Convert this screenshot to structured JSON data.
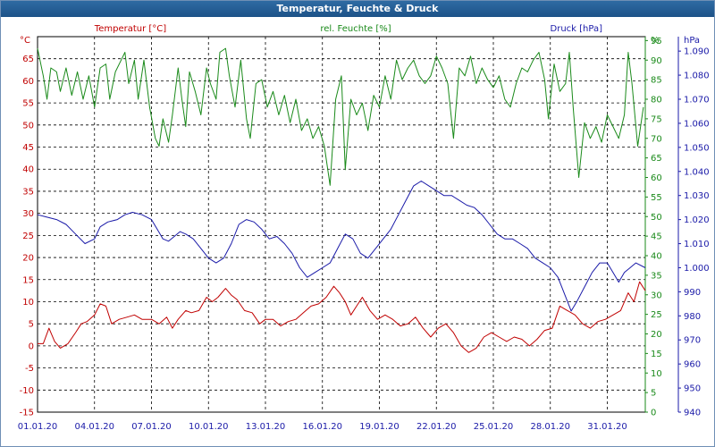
{
  "window": {
    "title": "Temperatur, Feuchte & Druck"
  },
  "chart_data": {
    "type": "line",
    "title": "Temperatur, Feuchte & Druck",
    "grid": true,
    "x_axis": {
      "ticks": [
        "01.01.20",
        "04.01.20",
        "07.01.20",
        "10.01.20",
        "13.01.20",
        "16.01.20",
        "19.01.20",
        "22.01.20",
        "25.01.20",
        "28.01.20",
        "31.01.20"
      ],
      "range": [
        0,
        32
      ],
      "unit": "days"
    },
    "axes": {
      "temperature": {
        "unit_label": "°C",
        "range": [
          -15,
          70
        ],
        "ticks": [
          "-15",
          "-10",
          "-5",
          "0",
          "5",
          "10",
          "15",
          "20",
          "25",
          "30",
          "35",
          "40",
          "45",
          "50",
          "55",
          "60",
          "65"
        ],
        "color": "#c00000"
      },
      "humidity": {
        "unit_label": "%",
        "range": [
          0,
          96
        ],
        "ticks": [
          "0",
          "5",
          "10",
          "15",
          "20",
          "25",
          "30",
          "35",
          "40",
          "45",
          "50",
          "55",
          "60",
          "65",
          "70",
          "75",
          "80",
          "85",
          "90",
          "95"
        ],
        "color": "#1a8a1a"
      },
      "pressure": {
        "unit_label": "hPa",
        "range": [
          940,
          1096
        ],
        "ticks": [
          "940",
          "950",
          "960",
          "970",
          "980",
          "990",
          "1.000",
          "1.010",
          "1.020",
          "1.030",
          "1.040",
          "1.050",
          "1.060",
          "1.070",
          "1.080",
          "1.090"
        ],
        "color": "#1a1aa8"
      }
    },
    "series": [
      {
        "name": "Temperatur [°C]",
        "axis": "temperature",
        "color": "#c00000",
        "points": [
          [
            0.0,
            0.5
          ],
          [
            0.3,
            0.5
          ],
          [
            0.6,
            4
          ],
          [
            0.9,
            1
          ],
          [
            1.2,
            -0.5
          ],
          [
            1.6,
            0.5
          ],
          [
            2.0,
            3
          ],
          [
            2.3,
            5
          ],
          [
            2.6,
            5.5
          ],
          [
            3.0,
            7
          ],
          [
            3.3,
            9.5
          ],
          [
            3.6,
            9
          ],
          [
            3.9,
            5
          ],
          [
            4.3,
            6
          ],
          [
            4.7,
            6.5
          ],
          [
            5.1,
            7
          ],
          [
            5.5,
            6
          ],
          [
            6.0,
            6
          ],
          [
            6.4,
            5
          ],
          [
            6.8,
            6.5
          ],
          [
            7.1,
            4
          ],
          [
            7.4,
            6
          ],
          [
            7.8,
            8
          ],
          [
            8.1,
            7.5
          ],
          [
            8.5,
            8
          ],
          [
            8.9,
            11
          ],
          [
            9.2,
            10
          ],
          [
            9.5,
            11
          ],
          [
            9.9,
            13
          ],
          [
            10.2,
            11.5
          ],
          [
            10.5,
            10.5
          ],
          [
            10.9,
            8
          ],
          [
            11.3,
            7.5
          ],
          [
            11.7,
            5
          ],
          [
            12.0,
            6
          ],
          [
            12.4,
            6
          ],
          [
            12.8,
            4.5
          ],
          [
            13.2,
            5.5
          ],
          [
            13.6,
            6
          ],
          [
            14.0,
            7.5
          ],
          [
            14.4,
            9
          ],
          [
            14.8,
            9.5
          ],
          [
            15.2,
            11
          ],
          [
            15.6,
            13.5
          ],
          [
            15.9,
            12
          ],
          [
            16.2,
            10
          ],
          [
            16.5,
            7
          ],
          [
            16.8,
            9
          ],
          [
            17.1,
            11
          ],
          [
            17.5,
            8
          ],
          [
            17.9,
            6
          ],
          [
            18.3,
            7
          ],
          [
            18.7,
            6
          ],
          [
            19.1,
            4.5
          ],
          [
            19.5,
            5
          ],
          [
            19.9,
            6.5
          ],
          [
            20.3,
            4
          ],
          [
            20.7,
            2
          ],
          [
            21.1,
            4
          ],
          [
            21.5,
            5
          ],
          [
            21.9,
            3
          ],
          [
            22.3,
            0
          ],
          [
            22.7,
            -1.5
          ],
          [
            23.1,
            -0.5
          ],
          [
            23.5,
            2
          ],
          [
            23.9,
            3
          ],
          [
            24.3,
            2
          ],
          [
            24.7,
            1
          ],
          [
            25.1,
            2
          ],
          [
            25.5,
            1.5
          ],
          [
            25.9,
            0
          ],
          [
            26.3,
            1.5
          ],
          [
            26.7,
            3.5
          ],
          [
            27.1,
            4
          ],
          [
            27.5,
            9
          ],
          [
            27.9,
            8
          ],
          [
            28.3,
            7
          ],
          [
            28.7,
            5
          ],
          [
            29.1,
            4
          ],
          [
            29.5,
            5.5
          ],
          [
            29.9,
            6
          ],
          [
            30.3,
            7
          ],
          [
            30.7,
            8
          ],
          [
            31.1,
            12
          ],
          [
            31.4,
            10
          ],
          [
            31.7,
            14.5
          ],
          [
            32.0,
            12.5
          ]
        ]
      },
      {
        "name": "rel. Feuchte [%]",
        "axis": "humidity",
        "color": "#1a8a1a",
        "points": [
          [
            0.0,
            93
          ],
          [
            0.3,
            86
          ],
          [
            0.5,
            80
          ],
          [
            0.7,
            88
          ],
          [
            1.0,
            87
          ],
          [
            1.2,
            82
          ],
          [
            1.5,
            88
          ],
          [
            1.8,
            81
          ],
          [
            2.1,
            87
          ],
          [
            2.4,
            80
          ],
          [
            2.7,
            86
          ],
          [
            3.0,
            78
          ],
          [
            3.3,
            88
          ],
          [
            3.6,
            89
          ],
          [
            3.8,
            80
          ],
          [
            4.1,
            87
          ],
          [
            4.4,
            90
          ],
          [
            4.6,
            92
          ],
          [
            4.8,
            84
          ],
          [
            5.1,
            90
          ],
          [
            5.3,
            80
          ],
          [
            5.6,
            90
          ],
          [
            5.9,
            78
          ],
          [
            6.2,
            70
          ],
          [
            6.4,
            68
          ],
          [
            6.6,
            75
          ],
          [
            6.9,
            69
          ],
          [
            7.1,
            76
          ],
          [
            7.4,
            88
          ],
          [
            7.6,
            80
          ],
          [
            7.8,
            73
          ],
          [
            8.0,
            87
          ],
          [
            8.3,
            82
          ],
          [
            8.6,
            76
          ],
          [
            8.9,
            88
          ],
          [
            9.1,
            84
          ],
          [
            9.4,
            80
          ],
          [
            9.6,
            92
          ],
          [
            9.9,
            93
          ],
          [
            10.1,
            86
          ],
          [
            10.4,
            78
          ],
          [
            10.7,
            90
          ],
          [
            11.0,
            75
          ],
          [
            11.2,
            70
          ],
          [
            11.5,
            84
          ],
          [
            11.8,
            85
          ],
          [
            12.1,
            78
          ],
          [
            12.4,
            82
          ],
          [
            12.7,
            76
          ],
          [
            13.0,
            81
          ],
          [
            13.3,
            74
          ],
          [
            13.6,
            80
          ],
          [
            13.9,
            72
          ],
          [
            14.2,
            75
          ],
          [
            14.5,
            70
          ],
          [
            14.8,
            73
          ],
          [
            15.1,
            68
          ],
          [
            15.4,
            58
          ],
          [
            15.7,
            80
          ],
          [
            16.0,
            86
          ],
          [
            16.2,
            62
          ],
          [
            16.5,
            80
          ],
          [
            16.8,
            76
          ],
          [
            17.1,
            79
          ],
          [
            17.4,
            72
          ],
          [
            17.7,
            81
          ],
          [
            18.0,
            78
          ],
          [
            18.3,
            86
          ],
          [
            18.6,
            80
          ],
          [
            18.9,
            90
          ],
          [
            19.2,
            85
          ],
          [
            19.5,
            88
          ],
          [
            19.8,
            90
          ],
          [
            20.1,
            86
          ],
          [
            20.4,
            84
          ],
          [
            20.7,
            86
          ],
          [
            21.0,
            91
          ],
          [
            21.3,
            88
          ],
          [
            21.6,
            84
          ],
          [
            21.9,
            70
          ],
          [
            22.2,
            88
          ],
          [
            22.5,
            86
          ],
          [
            22.8,
            91
          ],
          [
            23.1,
            84
          ],
          [
            23.4,
            88
          ],
          [
            23.7,
            85
          ],
          [
            24.0,
            83
          ],
          [
            24.3,
            86
          ],
          [
            24.6,
            80
          ],
          [
            24.9,
            78
          ],
          [
            25.2,
            84
          ],
          [
            25.5,
            88
          ],
          [
            25.8,
            87
          ],
          [
            26.1,
            90
          ],
          [
            26.4,
            92
          ],
          [
            26.7,
            85
          ],
          [
            26.9,
            75
          ],
          [
            27.2,
            89
          ],
          [
            27.5,
            82
          ],
          [
            27.8,
            84
          ],
          [
            28.0,
            92
          ],
          [
            28.2,
            78
          ],
          [
            28.5,
            60
          ],
          [
            28.8,
            74
          ],
          [
            29.1,
            70
          ],
          [
            29.4,
            73
          ],
          [
            29.7,
            69
          ],
          [
            30.0,
            76
          ],
          [
            30.3,
            73
          ],
          [
            30.6,
            70
          ],
          [
            30.9,
            76
          ],
          [
            31.1,
            92
          ],
          [
            31.3,
            84
          ],
          [
            31.6,
            68
          ],
          [
            31.9,
            78
          ]
        ]
      },
      {
        "name": "Druck [hPa]",
        "axis": "pressure",
        "color": "#1a1aa8",
        "points": [
          [
            0.0,
            1022
          ],
          [
            0.5,
            1021
          ],
          [
            1.0,
            1020
          ],
          [
            1.5,
            1018
          ],
          [
            2.0,
            1014
          ],
          [
            2.5,
            1010
          ],
          [
            3.0,
            1012
          ],
          [
            3.3,
            1017
          ],
          [
            3.7,
            1019
          ],
          [
            4.2,
            1020
          ],
          [
            4.6,
            1022
          ],
          [
            5.0,
            1023
          ],
          [
            5.5,
            1022
          ],
          [
            6.0,
            1020
          ],
          [
            6.3,
            1016
          ],
          [
            6.6,
            1012
          ],
          [
            6.9,
            1011
          ],
          [
            7.2,
            1013
          ],
          [
            7.5,
            1015
          ],
          [
            7.8,
            1014
          ],
          [
            8.2,
            1012
          ],
          [
            8.6,
            1008
          ],
          [
            9.0,
            1004
          ],
          [
            9.4,
            1002
          ],
          [
            9.8,
            1004
          ],
          [
            10.2,
            1010
          ],
          [
            10.6,
            1018
          ],
          [
            11.0,
            1020
          ],
          [
            11.4,
            1019
          ],
          [
            11.8,
            1016
          ],
          [
            12.2,
            1012
          ],
          [
            12.6,
            1013
          ],
          [
            13.0,
            1010
          ],
          [
            13.4,
            1006
          ],
          [
            13.8,
            1000
          ],
          [
            14.2,
            996
          ],
          [
            14.6,
            998
          ],
          [
            15.0,
            1000
          ],
          [
            15.4,
            1002
          ],
          [
            15.8,
            1008
          ],
          [
            16.2,
            1014
          ],
          [
            16.6,
            1012
          ],
          [
            17.0,
            1006
          ],
          [
            17.4,
            1004
          ],
          [
            17.8,
            1008
          ],
          [
            18.2,
            1012
          ],
          [
            18.6,
            1016
          ],
          [
            19.0,
            1022
          ],
          [
            19.4,
            1028
          ],
          [
            19.8,
            1034
          ],
          [
            20.2,
            1036
          ],
          [
            20.6,
            1034
          ],
          [
            21.0,
            1032
          ],
          [
            21.4,
            1030
          ],
          [
            21.8,
            1030
          ],
          [
            22.2,
            1028
          ],
          [
            22.6,
            1026
          ],
          [
            23.0,
            1025
          ],
          [
            23.4,
            1022
          ],
          [
            23.8,
            1018
          ],
          [
            24.2,
            1014
          ],
          [
            24.6,
            1012
          ],
          [
            25.0,
            1012
          ],
          [
            25.4,
            1010
          ],
          [
            25.8,
            1008
          ],
          [
            26.2,
            1004
          ],
          [
            26.6,
            1002
          ],
          [
            27.0,
            1000
          ],
          [
            27.4,
            996
          ],
          [
            27.8,
            988
          ],
          [
            28.1,
            982
          ],
          [
            28.4,
            986
          ],
          [
            28.8,
            992
          ],
          [
            29.2,
            998
          ],
          [
            29.6,
            1002
          ],
          [
            30.0,
            1002
          ],
          [
            30.3,
            998
          ],
          [
            30.6,
            994
          ],
          [
            30.9,
            998
          ],
          [
            31.2,
            1000
          ],
          [
            31.5,
            1002
          ],
          [
            32.0,
            1000
          ]
        ]
      }
    ]
  }
}
